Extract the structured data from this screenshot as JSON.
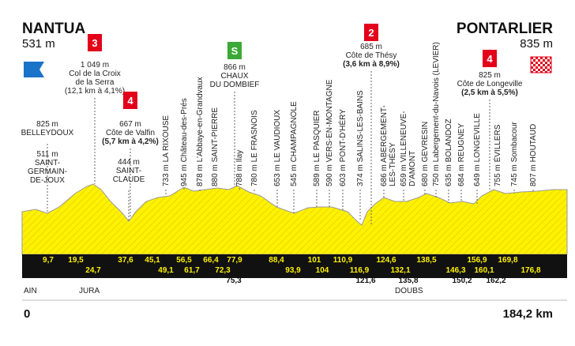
{
  "start": {
    "name": "NANTUA",
    "altitude": "531 m"
  },
  "finish": {
    "name": "PONTARLIER",
    "altitude": "835 m"
  },
  "climbs": [
    {
      "category": "3",
      "lines": [
        "1 049 m",
        "Col de la Croix",
        "de la Serra",
        "(12,1 km à 4,1%)"
      ]
    },
    {
      "category": "4",
      "lines": [
        "667 m",
        "Côte de Valfin",
        "(5,7 km à 4,2%)"
      ]
    },
    {
      "category": "S",
      "lines": [
        "866 m",
        "CHAUX",
        "DU DOMBIEF"
      ]
    },
    {
      "category": "2",
      "lines": [
        "685 m",
        "Côte de Thésy",
        "(3,6 km à 8,9%)"
      ]
    },
    {
      "category": "4",
      "lines": [
        "825 m",
        "Côte de Longeville",
        "(2,5 km à 5,5%)"
      ]
    }
  ],
  "places": [
    {
      "lines": [
        "825 m",
        "BELLEYDOUX"
      ]
    },
    {
      "lines": [
        "511 m",
        "SAINT-",
        "GERMAIN-",
        "DE-JOUX"
      ]
    },
    {
      "lines": [
        "444 m",
        "SAINT-",
        "CLAUDE"
      ]
    }
  ],
  "waypoints": [
    {
      "lines": [
        "733 m LA RIXOUSE"
      ]
    },
    {
      "lines": [
        "945 m Château-des-Prés"
      ]
    },
    {
      "lines": [
        "878 m L'Abbaye-en-Grandvaux"
      ]
    },
    {
      "lines": [
        "880 m SAINT-PIERRE"
      ]
    },
    {
      "lines": [
        "788 m Ilay"
      ]
    },
    {
      "lines": [
        "780 m LE FRASNOIS"
      ]
    },
    {
      "lines": [
        "653 m LE VAUDIOUX"
      ]
    },
    {
      "lines": [
        "545 m CHAMPAGNOLE"
      ]
    },
    {
      "lines": [
        "589 m LE PASQUIER"
      ]
    },
    {
      "lines": [
        "590 m VERS-EN-MONTAGNE"
      ]
    },
    {
      "lines": [
        "603 m PONT-D'HÉRY"
      ]
    },
    {
      "lines": [
        "374 m SALINS-LES-BAINS"
      ]
    },
    {
      "lines": [
        "686 m ABERGEMENT-",
        "LES-THÉSY"
      ]
    },
    {
      "lines": [
        "659 m VILLENEUVE-",
        "D'AMONT"
      ]
    },
    {
      "lines": [
        "680 m GEVRESIN"
      ]
    },
    {
      "lines": [
        "750 m Labergement-du-Navois (LEVIER)"
      ]
    },
    {
      "lines": [
        "635 m BOLANDOZ"
      ]
    },
    {
      "lines": [
        "684 m REUGNEY"
      ]
    },
    {
      "lines": [
        "649 m LONGEVILLE"
      ]
    },
    {
      "lines": [
        "755 m ÉVILLERS"
      ]
    },
    {
      "lines": [
        "745 m Sombacour"
      ]
    },
    {
      "lines": [
        "807 m HOUTAUD"
      ]
    }
  ],
  "km_markers": [
    "9,7",
    "19,5",
    "24,7",
    "37,6",
    "45,1",
    "49,1",
    "56,5",
    "61,7",
    "66,4",
    "72,3",
    "75,3",
    "77,9",
    "88,4",
    "93,9",
    "101",
    "104",
    "110,9",
    "116,9",
    "121,6",
    "124,6",
    "132,1",
    "135,8",
    "138,5",
    "146,3",
    "150,2",
    "156,9",
    "160,1",
    "162,2",
    "169,8",
    "176,8"
  ],
  "regions": [
    "AIN",
    "JURA",
    "DOUBS"
  ],
  "distance": {
    "start": "0",
    "end": "184,2 km"
  }
}
